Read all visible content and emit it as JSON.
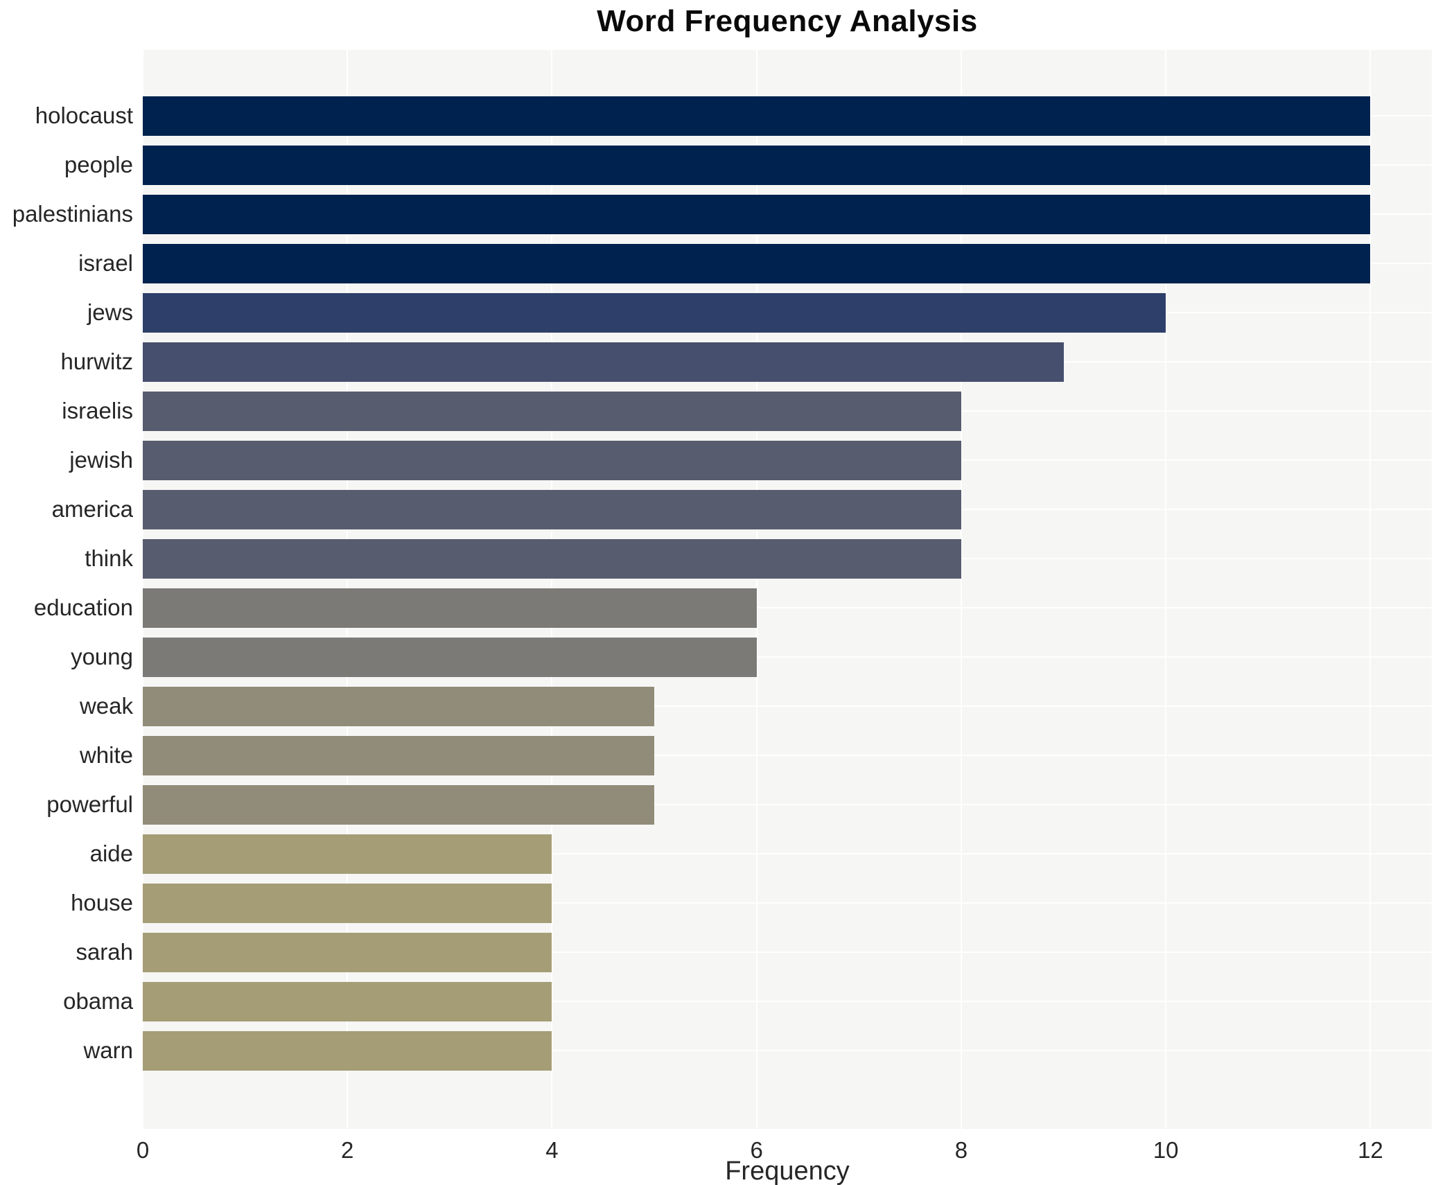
{
  "chart_data": {
    "type": "bar",
    "orientation": "horizontal",
    "title": "Word Frequency Analysis",
    "xlabel": "Frequency",
    "ylabel": "",
    "categories": [
      "holocaust",
      "people",
      "palestinians",
      "israel",
      "jews",
      "hurwitz",
      "israelis",
      "jewish",
      "america",
      "think",
      "education",
      "young",
      "weak",
      "white",
      "powerful",
      "aide",
      "house",
      "sarah",
      "obama",
      "warn"
    ],
    "values": [
      12,
      12,
      12,
      12,
      10,
      9,
      8,
      8,
      8,
      8,
      6,
      6,
      5,
      5,
      5,
      4,
      4,
      4,
      4,
      4
    ],
    "bar_colors": [
      "#00224e",
      "#00224e",
      "#00224e",
      "#00224e",
      "#2e4069",
      "#464f6d",
      "#575c6e",
      "#575c6e",
      "#575c6e",
      "#575c6e",
      "#7b7a77",
      "#7b7a77",
      "#918b79",
      "#918b79",
      "#918b79",
      "#a59d76",
      "#a59d76",
      "#a59d76",
      "#a59d76",
      "#a59d76"
    ],
    "xticks": [
      0,
      2,
      4,
      6,
      8,
      10,
      12
    ],
    "xlim": [
      0,
      12.6
    ],
    "grid": true,
    "legend": false,
    "style": {
      "page_background": "#ffffff",
      "plot_background": "#f6f6f5",
      "grid_color": "#ffffff",
      "tick_color": "#262626",
      "title_color": "#0a0a0a"
    }
  }
}
